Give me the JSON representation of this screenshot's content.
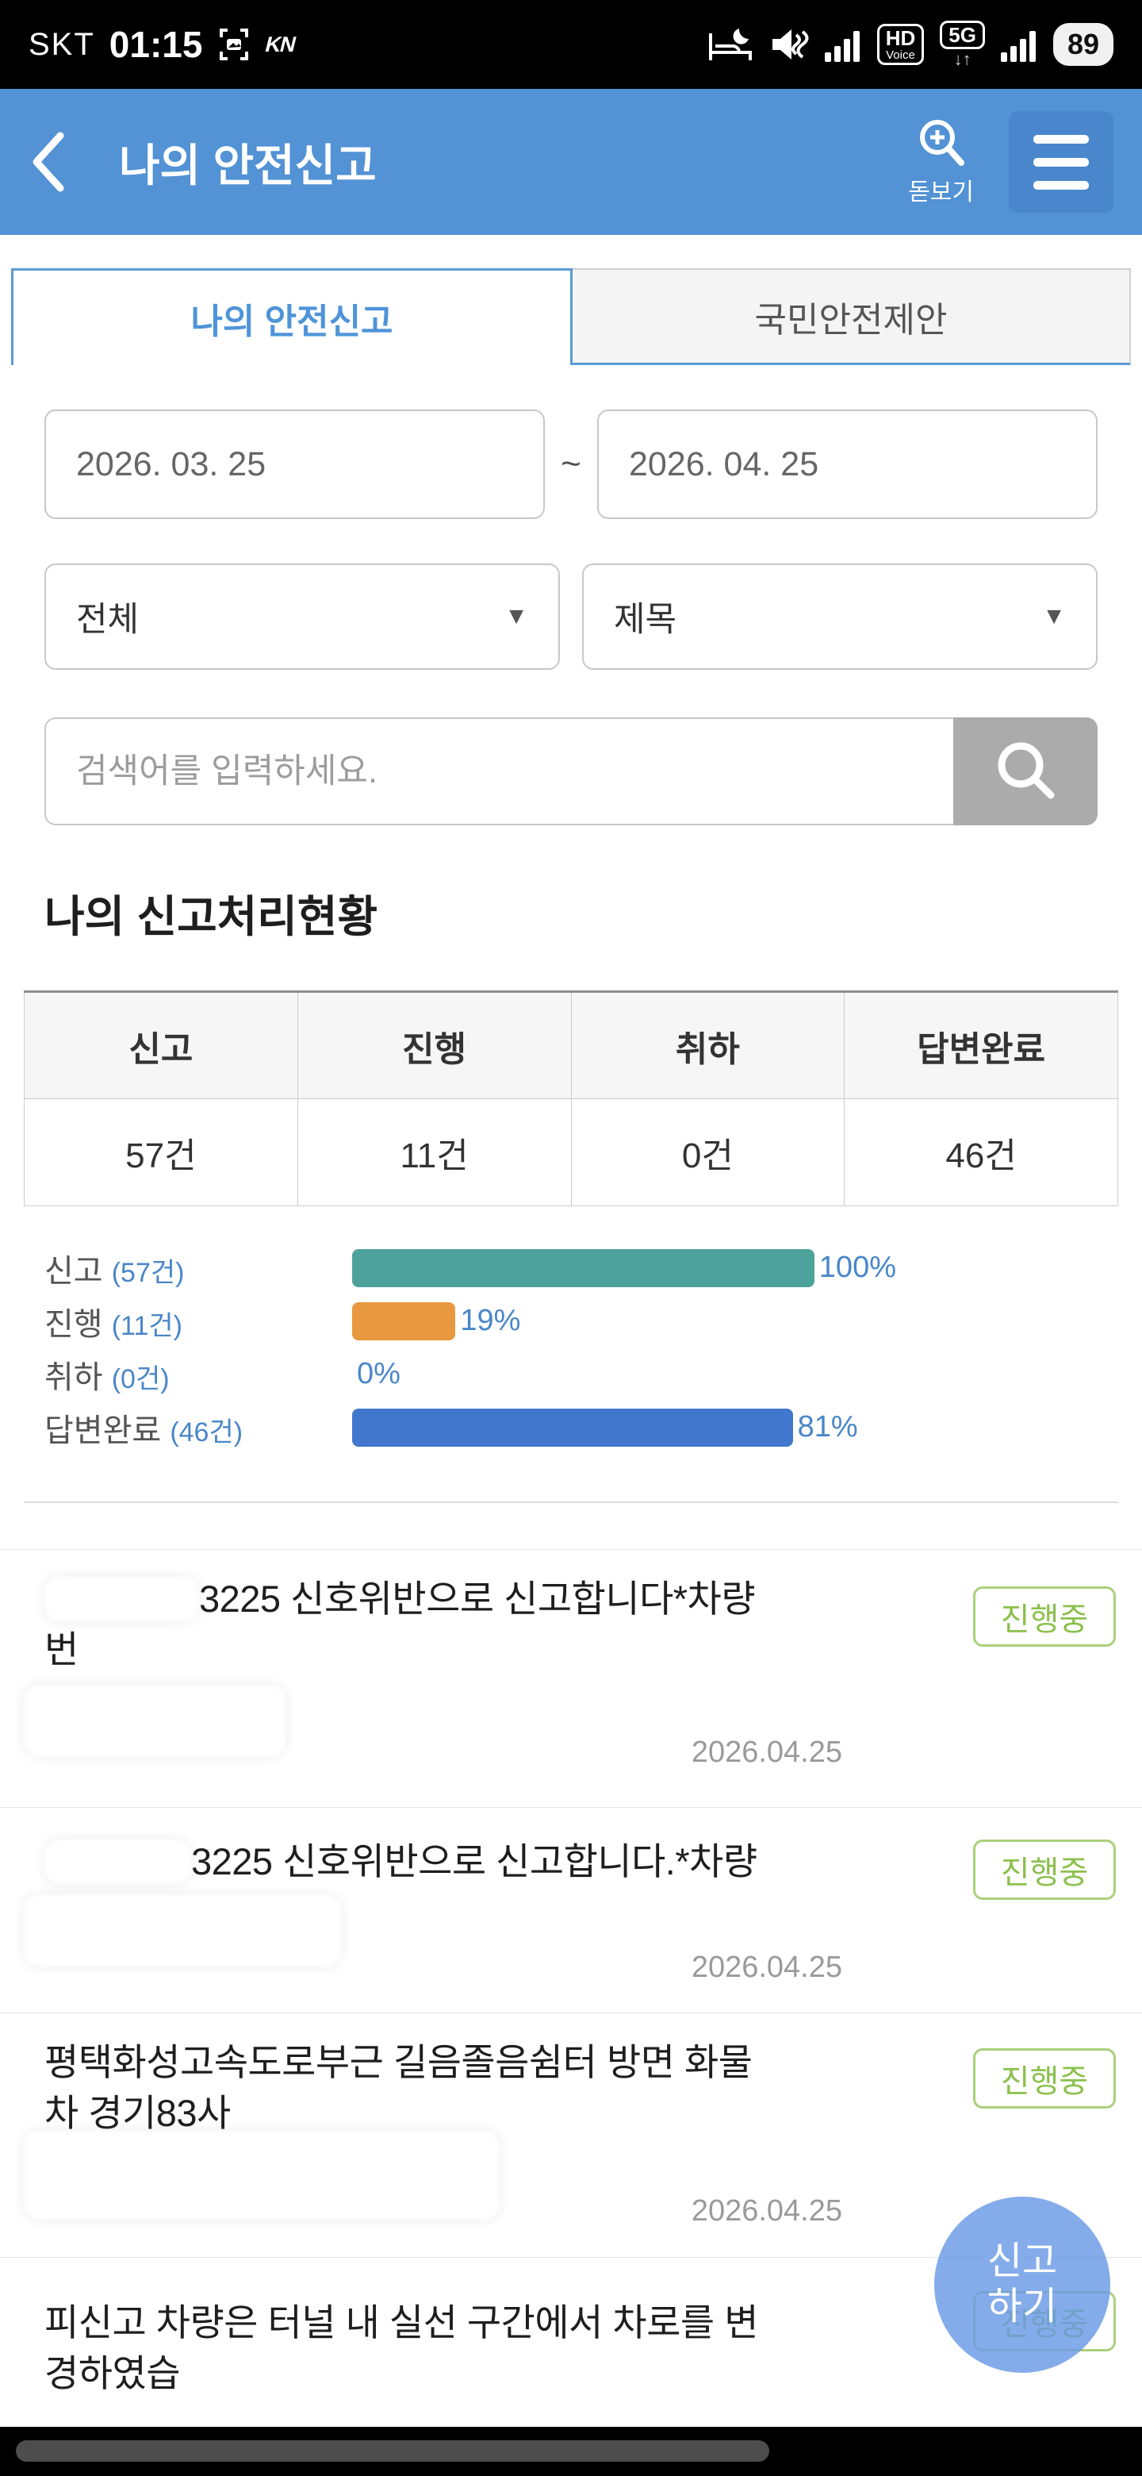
{
  "status_bar": {
    "carrier": "SKT",
    "time": "01:15",
    "kia_logo": "KN",
    "hd_badge_top": "HD",
    "hd_badge_bottom": "Voice",
    "network_badge": "5G",
    "network_arrows": "↓↑",
    "battery": "89"
  },
  "header": {
    "title": "나의 안전신고",
    "magnifier_label": "돋보기"
  },
  "tabs": {
    "active": "나의 안전신고",
    "inactive": "국민안전제안"
  },
  "filters": {
    "date_from": "2026. 03. 25",
    "tilde": "~",
    "date_to": "2026. 04. 25",
    "category_selected": "전체",
    "field_selected": "제목",
    "dropdown_arrow": "▼",
    "search_placeholder": "검색어를 입력하세요."
  },
  "summary": {
    "title": "나의 신고처리현황",
    "columns": [
      "신고",
      "진행",
      "취하",
      "답변완료"
    ],
    "values": [
      "57건",
      "11건",
      "0건",
      "46건"
    ]
  },
  "chart_data": {
    "type": "bar",
    "orientation": "horizontal",
    "title": "나의 신고처리현황",
    "categories": [
      "신고",
      "진행",
      "취하",
      "답변완료"
    ],
    "counts": [
      57,
      11,
      0,
      46
    ],
    "values": [
      100,
      19,
      0,
      81
    ],
    "unit": "%",
    "xlim": [
      0,
      100
    ],
    "grid": false,
    "legend": "none",
    "rows": [
      {
        "label": "신고",
        "count_label": "(57건)",
        "percent": 100,
        "percent_label": "100%",
        "color": "#4da29b"
      },
      {
        "label": "진행",
        "count_label": "(11건)",
        "percent": 19,
        "percent_label": "19%",
        "color": "#e8983e"
      },
      {
        "label": "취하",
        "count_label": "(0건)",
        "percent": 0,
        "percent_label": "0%",
        "color": null
      },
      {
        "label": "답변완료",
        "count_label": "(46건)",
        "percent": 81,
        "percent_label": "81%",
        "color": "#4177cd"
      }
    ]
  },
  "reports": [
    {
      "line1": "3225 신호위반으로 신고합니다*차량",
      "line2": "번",
      "status": "진행중",
      "date": "2026.04.25"
    },
    {
      "line1": "3225 신호위반으로 신고합니다.*차량",
      "line2": "",
      "status": "진행중",
      "date": "2026.04.25"
    },
    {
      "line1": "평택화성고속도로부근 길음졸음쉼터 방면 화물",
      "line2": "차 경기83사",
      "status": "진행중",
      "date": "2026.04.25"
    },
    {
      "line1": "피신고 차량은 터널 내 실선 구간에서 차로를 변",
      "line2": "경하였습",
      "status": "진행중",
      "date": ""
    }
  ],
  "fab": {
    "line1": "신고",
    "line2": "하기"
  },
  "colors": {
    "header_blue": "#5292d5",
    "tab_blue": "#5b9bd5",
    "badge_green": "#8cc04d",
    "bar_teal": "#4da29b",
    "bar_orange": "#e8983e",
    "bar_blue": "#4177cd",
    "chart_text_blue": "#4a87c7"
  }
}
